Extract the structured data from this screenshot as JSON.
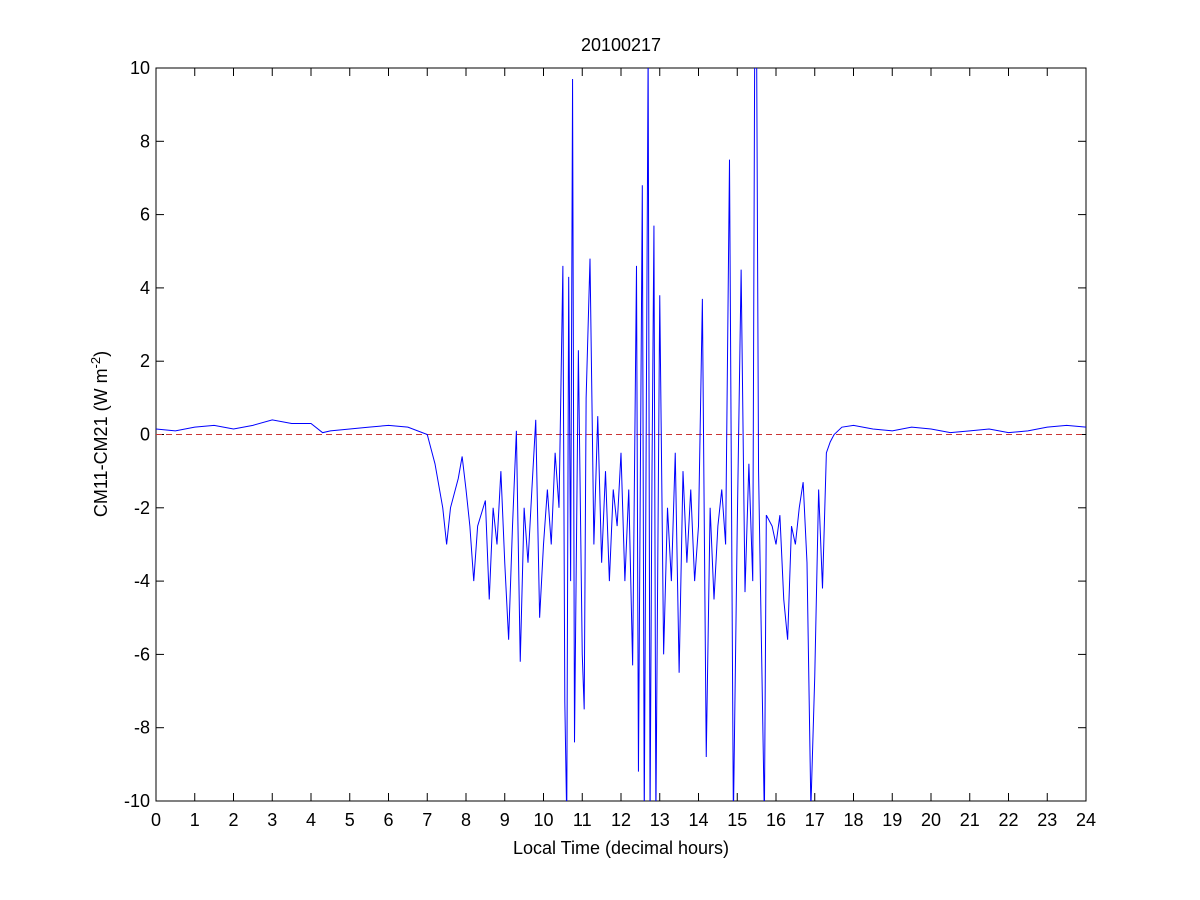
{
  "chart_data": {
    "type": "line",
    "title": "20100217",
    "xlabel": "Local Time (decimal hours)",
    "ylabel": [
      "CM11-CM21 (W m",
      "-2",
      ")"
    ],
    "xlim": [
      0,
      24
    ],
    "xticks": [
      0,
      1,
      2,
      3,
      4,
      5,
      6,
      7,
      8,
      9,
      10,
      11,
      12,
      13,
      14,
      15,
      16,
      17,
      18,
      19,
      20,
      21,
      22,
      23,
      24
    ],
    "ylim": [
      -10,
      10
    ],
    "yticks": [
      -10,
      -8,
      -6,
      -4,
      -2,
      0,
      2,
      4,
      6,
      8,
      10
    ],
    "reference_line": {
      "value": 0,
      "color": "#cc3333"
    },
    "series": [
      {
        "color": "#0000ff",
        "x": [
          0,
          0.5,
          1,
          1.5,
          2,
          2.5,
          3,
          3.5,
          4,
          4.3,
          4.5,
          5,
          5.5,
          6,
          6.5,
          7,
          7.2,
          7.4,
          7.5,
          7.6,
          7.8,
          7.9,
          8,
          8.1,
          8.2,
          8.3,
          8.5,
          8.6,
          8.7,
          8.8,
          8.9,
          9,
          9.1,
          9.2,
          9.3,
          9.4,
          9.5,
          9.6,
          9.7,
          9.8,
          9.9,
          10,
          10.1,
          10.2,
          10.3,
          10.4,
          10.5,
          10.55,
          10.6,
          10.65,
          10.7,
          10.75,
          10.8,
          10.9,
          11,
          11.05,
          11.1,
          11.2,
          11.3,
          11.4,
          11.5,
          11.6,
          11.7,
          11.8,
          11.9,
          12,
          12.1,
          12.2,
          12.3,
          12.4,
          12.45,
          12.5,
          12.55,
          12.6,
          12.7,
          12.75,
          12.8,
          12.85,
          12.9,
          13,
          13.1,
          13.2,
          13.3,
          13.4,
          13.5,
          13.6,
          13.7,
          13.8,
          13.9,
          14,
          14.1,
          14.2,
          14.3,
          14.4,
          14.5,
          14.6,
          14.7,
          14.8,
          14.9,
          15,
          15.1,
          15.2,
          15.3,
          15.4,
          15.45,
          15.5,
          15.55,
          15.7,
          15.75,
          15.9,
          16,
          16.1,
          16.2,
          16.3,
          16.4,
          16.5,
          16.6,
          16.7,
          16.8,
          16.9,
          17,
          17.1,
          17.2,
          17.3,
          17.4,
          17.5,
          17.7,
          18,
          18.5,
          19,
          19.5,
          20,
          20.5,
          21,
          21.5,
          22,
          22.5,
          23,
          23.5,
          24
        ],
        "values": [
          0.15,
          0.1,
          0.2,
          0.25,
          0.15,
          0.25,
          0.4,
          0.3,
          0.3,
          0.05,
          0.1,
          0.15,
          0.2,
          0.25,
          0.2,
          0,
          -0.8,
          -2,
          -3,
          -2,
          -1.2,
          -0.6,
          -1.5,
          -2.5,
          -4,
          -2.5,
          -1.8,
          -4.5,
          -2,
          -3,
          -1,
          -3.5,
          -5.6,
          -2.5,
          0.1,
          -6.2,
          -2,
          -3.5,
          -1.5,
          0.4,
          -5,
          -3,
          -1.5,
          -3,
          -0.5,
          -2,
          4.6,
          -7.3,
          -10.5,
          4.3,
          -4,
          9.7,
          -8.4,
          2.3,
          -6,
          -7.5,
          1,
          4.8,
          -3,
          0.5,
          -3.5,
          -1,
          -4,
          -1.5,
          -2.5,
          -0.5,
          -4,
          -1.5,
          -6.3,
          4.6,
          -9.2,
          -1,
          6.8,
          -10.5,
          10.5,
          -10.5,
          -1,
          5.7,
          -10.5,
          3.8,
          -6,
          -2,
          -4,
          -0.5,
          -6.5,
          -1,
          -3.5,
          -1.5,
          -4,
          -2.5,
          3.7,
          -8.8,
          -2,
          -4.5,
          -2.5,
          -1.5,
          -3,
          7.5,
          -10.5,
          -2.5,
          4.5,
          -4.3,
          -0.8,
          -4,
          10.5,
          10.5,
          -1,
          -10.5,
          -2.2,
          -2.5,
          -3,
          -2.2,
          -4.5,
          -5.6,
          -2.5,
          -3,
          -2,
          -1.3,
          -3.5,
          -10.2,
          -6.6,
          -1.5,
          -4.2,
          -0.5,
          -0.2,
          0,
          0.2,
          0.25,
          0.15,
          0.1,
          0.2,
          0.15,
          0.05,
          0.1,
          0.15,
          0.05,
          0.1,
          0.2,
          0.25,
          0.2
        ]
      }
    ]
  }
}
